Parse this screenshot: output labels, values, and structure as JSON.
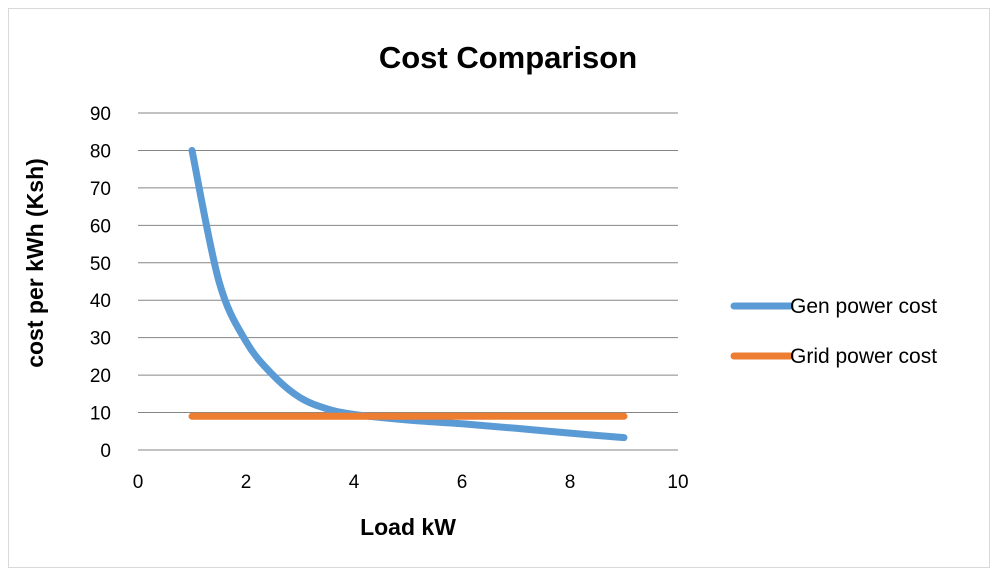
{
  "chart_data": {
    "type": "scatter",
    "title": "Cost Comparison",
    "xlabel": "Load kW",
    "ylabel": "cost per kWh (Ksh)",
    "xlim": [
      0,
      10
    ],
    "ylim": [
      0,
      90
    ],
    "xticks": [
      0,
      2,
      4,
      6,
      8,
      10
    ],
    "yticks": [
      0,
      10,
      20,
      30,
      40,
      50,
      60,
      70,
      80,
      90
    ],
    "grid": "horizontal",
    "legend_position": "right",
    "series": [
      {
        "name": "Gen power cost",
        "color": "#5b9bd5",
        "x": [
          1,
          1.5,
          2,
          2.5,
          3,
          3.5,
          4,
          5,
          6,
          7,
          8,
          9
        ],
        "y": [
          80,
          45,
          29,
          20,
          14,
          11,
          9.5,
          8,
          7,
          5.8,
          4.5,
          3.3
        ]
      },
      {
        "name": "Grid power cost",
        "color": "#ed7d31",
        "x": [
          1,
          9
        ],
        "y": [
          9,
          9
        ]
      }
    ]
  }
}
